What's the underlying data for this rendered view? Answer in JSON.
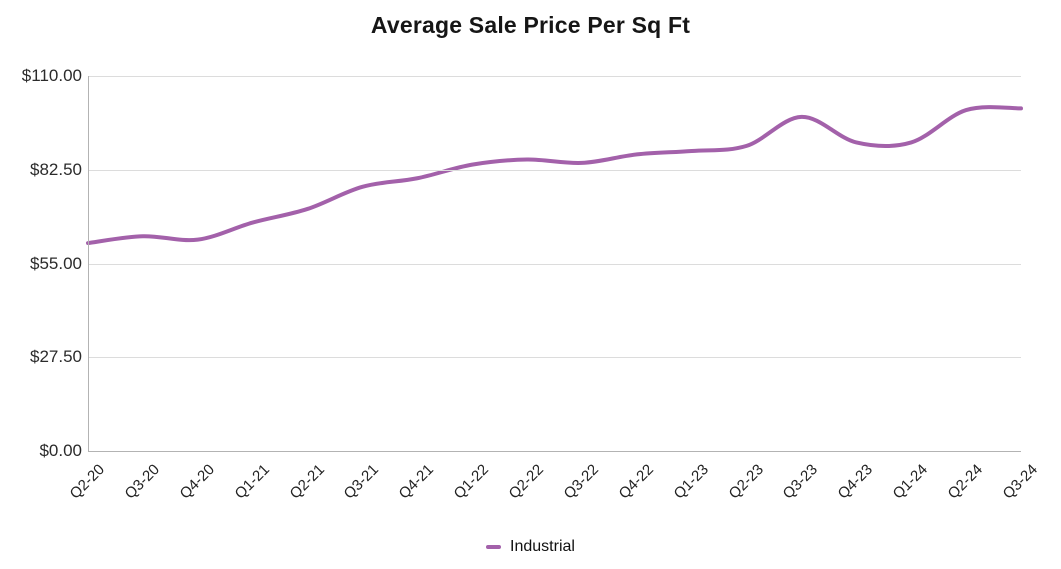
{
  "title": "Average Sale Price Per Sq Ft",
  "legend": {
    "position": "bottom",
    "items": [
      {
        "label": "Industrial",
        "color": "#a361aa"
      }
    ]
  },
  "chart_data": {
    "type": "line",
    "title": "Average Sale Price Per Sq Ft",
    "categories": [
      "Q2-20",
      "Q3-20",
      "Q4-20",
      "Q1-21",
      "Q2-21",
      "Q3-21",
      "Q4-21",
      "Q1-22",
      "Q2-22",
      "Q3-22",
      "Q4-22",
      "Q1-23",
      "Q2-23",
      "Q3-23",
      "Q4-23",
      "Q1-24",
      "Q2-24",
      "Q3-24"
    ],
    "series": [
      {
        "name": "Industrial",
        "color": "#a361aa",
        "values": [
          61,
          63,
          62,
          67,
          71,
          77.5,
          80,
          84,
          85.5,
          84.5,
          87,
          88,
          89.5,
          98,
          90.5,
          90.5,
          100,
          100.5
        ]
      }
    ],
    "xlabel": "",
    "ylabel": "",
    "ylim": [
      0,
      110
    ],
    "yticks": [
      "$0.00",
      "$27.50",
      "$55.00",
      "$82.50",
      "$110.00"
    ],
    "ytick_values": [
      0,
      27.5,
      55,
      82.5,
      110
    ],
    "grid": true,
    "line_smoothing": true,
    "legend_position": "bottom",
    "colors": {
      "background": "#ffffff",
      "gridline": "#dcdcdc",
      "axis": "#b3b3b3",
      "title_text": "#161616",
      "tick_text": "#2b2b2b"
    }
  }
}
